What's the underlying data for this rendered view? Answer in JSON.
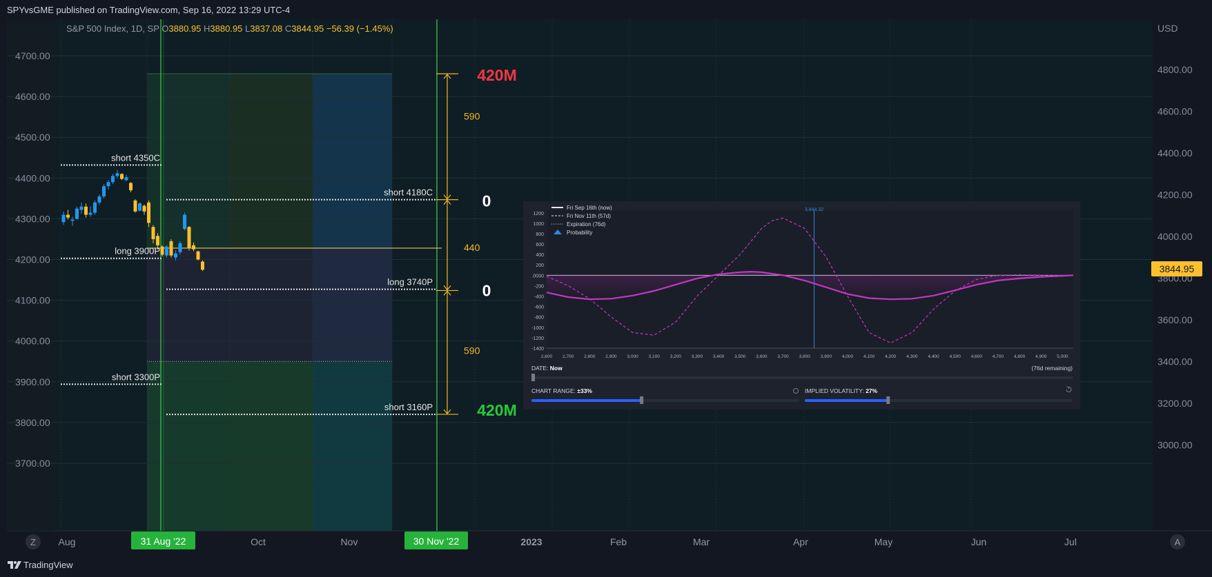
{
  "header": {
    "publisher_line": "SPYvsGME published on TradingView.com, Sep 16, 2022 13:29 UTC-4"
  },
  "footer": {
    "brand": "TradingView"
  },
  "colors": {
    "bg": "#131722",
    "chart_bg": "#0f1e24",
    "up": "#2196f3",
    "down": "#fbc02d",
    "profit": "#28c83c",
    "loss": "#f23645",
    "accent": "#ffb74d",
    "marker": "#3cd14a",
    "price_tag": "#fbc02d"
  },
  "chart_data": [
    {
      "type": "candlestick",
      "symbol_line": {
        "name": "S&P 500 Index, 1D, SP",
        "o_label": "O",
        "o": "3880.95",
        "h_label": "H",
        "h": "3880.95",
        "l_label": "L",
        "l": "3837.08",
        "c_label": "C",
        "c": "3844.95",
        "change": "−56.39 (−1.45%)"
      },
      "left_axis": {
        "ticks": [
          "4700.00",
          "4600.00",
          "4500.00",
          "4400.00",
          "4300.00",
          "4200.00",
          "4100.00",
          "4000.00",
          "3900.00",
          "3800.00",
          "3700.00"
        ]
      },
      "right_axis": {
        "currency": "USD",
        "ticks": [
          "4800.00",
          "4600.00",
          "4400.00",
          "4200.00",
          "4000.00",
          "3800.00",
          "3600.00",
          "3400.00",
          "3200.00",
          "3000.00"
        ],
        "last_price": "3844.95"
      },
      "x_axis": {
        "labels": [
          "Aug",
          "Oct",
          "Nov",
          "2023",
          "Feb",
          "Mar",
          "Apr",
          "May",
          "Jun",
          "Jul"
        ],
        "highlights": [
          "31 Aug '22",
          "30 Nov '22"
        ],
        "left_button": "Z",
        "right_button": "A"
      },
      "candles": [
        {
          "o": 4292,
          "h": 4318,
          "l": 4285,
          "c": 4310
        },
        {
          "o": 4310,
          "h": 4322,
          "l": 4298,
          "c": 4303
        },
        {
          "o": 4295,
          "h": 4305,
          "l": 4283,
          "c": 4298
        },
        {
          "o": 4300,
          "h": 4330,
          "l": 4298,
          "c": 4325
        },
        {
          "o": 4322,
          "h": 4340,
          "l": 4312,
          "c": 4330
        },
        {
          "o": 4330,
          "h": 4338,
          "l": 4303,
          "c": 4310
        },
        {
          "o": 4310,
          "h": 4330,
          "l": 4305,
          "c": 4315
        },
        {
          "o": 4315,
          "h": 4345,
          "l": 4310,
          "c": 4340
        },
        {
          "o": 4340,
          "h": 4360,
          "l": 4335,
          "c": 4355
        },
        {
          "o": 4355,
          "h": 4385,
          "l": 4350,
          "c": 4380
        },
        {
          "o": 4380,
          "h": 4395,
          "l": 4372,
          "c": 4390
        },
        {
          "o": 4390,
          "h": 4410,
          "l": 4385,
          "c": 4405
        },
        {
          "o": 4405,
          "h": 4420,
          "l": 4400,
          "c": 4412
        },
        {
          "o": 4410,
          "h": 4412,
          "l": 4395,
          "c": 4398
        },
        {
          "o": 4395,
          "h": 4408,
          "l": 4392,
          "c": 4402
        },
        {
          "o": 4388,
          "h": 4390,
          "l": 4365,
          "c": 4370
        },
        {
          "o": 4345,
          "h": 4348,
          "l": 4315,
          "c": 4318
        },
        {
          "o": 4320,
          "h": 4340,
          "l": 4318,
          "c": 4338
        },
        {
          "o": 4332,
          "h": 4335,
          "l": 4310,
          "c": 4318
        },
        {
          "o": 4340,
          "h": 4345,
          "l": 4280,
          "c": 4290
        },
        {
          "o": 4280,
          "h": 4285,
          "l": 4240,
          "c": 4250
        },
        {
          "o": 4258,
          "h": 4265,
          "l": 4225,
          "c": 4235
        },
        {
          "o": 4232,
          "h": 4235,
          "l": 4208,
          "c": 4212
        },
        {
          "o": 4210,
          "h": 4235,
          "l": 4205,
          "c": 4232
        },
        {
          "o": 4245,
          "h": 4250,
          "l": 4205,
          "c": 4210
        },
        {
          "o": 4205,
          "h": 4222,
          "l": 4198,
          "c": 4215
        },
        {
          "o": 4218,
          "h": 4245,
          "l": 4212,
          "c": 4240
        },
        {
          "o": 4275,
          "h": 4315,
          "l": 4272,
          "c": 4310
        },
        {
          "o": 4280,
          "h": 4282,
          "l": 4222,
          "c": 4228
        },
        {
          "o": 4235,
          "h": 4242,
          "l": 4220,
          "c": 4225
        },
        {
          "o": 4220,
          "h": 4222,
          "l": 4198,
          "c": 4200
        },
        {
          "o": 4195,
          "h": 4198,
          "l": 4172,
          "c": 4175
        }
      ],
      "strike_lines": [
        {
          "label": "short 4350C",
          "price": 4432,
          "side": "left"
        },
        {
          "label": "long 3900P",
          "price": 4203,
          "side": "left"
        },
        {
          "label": "short 3300P",
          "price": 3894,
          "side": "left"
        },
        {
          "label": "short 4180C",
          "price": 4347,
          "side": "right"
        },
        {
          "label": "long 3740P",
          "price": 4127,
          "side": "right"
        },
        {
          "label": "short 3160P",
          "price": 3820,
          "side": "right"
        }
      ],
      "entry_price": 4228,
      "zones": {
        "top": 4656,
        "mid": 3950,
        "bottom": 3820
      },
      "measure_labels": [
        {
          "text": "590",
          "price": 4552
        },
        {
          "text": "440",
          "price": 4230
        },
        {
          "text": "590",
          "price": 3977
        }
      ],
      "pnl_labels": [
        {
          "text": "420M",
          "price": 4653,
          "kind": "loss"
        },
        {
          "text": "0",
          "price": 4344,
          "kind": "neutral"
        },
        {
          "text": "0",
          "price": 4124,
          "kind": "neutral"
        },
        {
          "text": "420M",
          "price": 3830,
          "kind": "profit"
        }
      ]
    },
    {
      "type": "line",
      "legend": [
        "Fri Sep 16th (now)",
        "Fri Nov 11th (57d)",
        "Expiration (76d)",
        "Probability"
      ],
      "marker_label": "3,844.32",
      "marker_x": 3844.32,
      "y_ticks": [
        "1200",
        "1000",
        "800",
        "600",
        "400",
        "200",
        ".0000",
        "-200",
        "-400",
        "-600",
        "-800",
        "-1000",
        "-1200",
        "-1400"
      ],
      "x_ticks": [
        "2,600",
        "2,700",
        "2,800",
        "2,900",
        "3,000",
        "3,100",
        "3,200",
        "3,300",
        "3,400",
        "3,500",
        "3,600",
        "3,700",
        "3,800",
        "3,900",
        "4,000",
        "4,100",
        "4,200",
        "4,300",
        "4,400",
        "4,500",
        "4,600",
        "4,700",
        "4,800",
        "4,900",
        "5,000"
      ],
      "xlim": [
        2600,
        5050
      ],
      "ylim": [
        -1400,
        1250
      ],
      "series": [
        {
          "name": "Fri Sep 16th (now)",
          "style": "solid",
          "x": [
            2600,
            2700,
            2800,
            2900,
            3000,
            3100,
            3200,
            3300,
            3400,
            3500,
            3550,
            3600,
            3700,
            3800,
            3900,
            4000,
            4100,
            4200,
            4300,
            4400,
            4500,
            4600,
            4700,
            4800,
            4900,
            5000,
            5050
          ],
          "values": [
            -330,
            -420,
            -460,
            -450,
            -390,
            -300,
            -180,
            -60,
            20,
            60,
            70,
            60,
            0,
            -100,
            -230,
            -360,
            -440,
            -460,
            -450,
            -390,
            -290,
            -180,
            -100,
            -60,
            -30,
            -10,
            0
          ]
        },
        {
          "name": "Fri Nov 11th (57d)",
          "style": "dashed",
          "x": [
            2600,
            2700,
            2800,
            2900,
            3000,
            3100,
            3200,
            3300,
            3400,
            3500,
            3600,
            3650,
            3700,
            3750,
            3800,
            3900,
            4000,
            4100,
            4200,
            4300,
            4400,
            4500,
            4600,
            4700,
            4800,
            4900,
            5000,
            5050
          ],
          "values": [
            -20,
            -200,
            -450,
            -800,
            -1100,
            -1150,
            -900,
            -400,
            0,
            400,
            900,
            1050,
            1100,
            1000,
            900,
            350,
            -400,
            -1100,
            -1300,
            -1100,
            -650,
            -300,
            -80,
            0,
            10,
            0,
            -5,
            0
          ]
        }
      ],
      "controls": {
        "date_label": "DATE:",
        "date_value": "Now",
        "remaining": "(76d remaining)",
        "range_label": "CHART RANGE:",
        "range_value": "±33%",
        "range_fill": 0.41,
        "iv_label": "IMPLIED VOLATILITY:",
        "iv_value": "27%",
        "iv_fill": 0.31,
        "date_fill": 0.0
      }
    }
  ]
}
